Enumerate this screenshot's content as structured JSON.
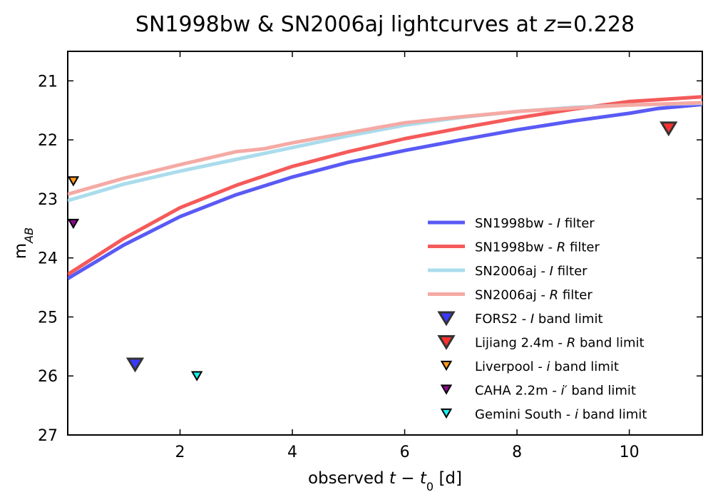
{
  "chart_data": {
    "type": "line",
    "title_parts": [
      {
        "text": "SN1998bw & SN2006aj lightcurves at ",
        "italic": false
      },
      {
        "text": "z",
        "italic": true
      },
      {
        "text": "=0.228",
        "italic": false
      }
    ],
    "xlabel_parts": [
      {
        "text": "observed ",
        "italic": false
      },
      {
        "text": "t",
        "italic": true
      },
      {
        "text": " − ",
        "italic": false
      },
      {
        "text": "t",
        "italic": true
      },
      {
        "text": "0",
        "italic": false,
        "sub": true
      },
      {
        "text": " [d]",
        "italic": false
      }
    ],
    "ylabel_parts": [
      {
        "text": "m",
        "italic": false
      },
      {
        "text": "AB",
        "italic": true,
        "sub": true
      }
    ],
    "xlim": [
      0,
      11.3
    ],
    "ylim": [
      27,
      20.5
    ],
    "y_inverted": true,
    "x_ticks": [
      2,
      4,
      6,
      8,
      10
    ],
    "y_ticks": [
      21,
      22,
      23,
      24,
      25,
      26,
      27
    ],
    "grid": false,
    "legend_position": "lower-right",
    "series": [
      {
        "name_parts": [
          {
            "text": "SN1998bw - ",
            "italic": false
          },
          {
            "text": "I",
            "italic": true
          },
          {
            "text": " filter",
            "italic": false
          }
        ],
        "color": "#5a5af5",
        "x": [
          0,
          1,
          2,
          3,
          4,
          5,
          6,
          7,
          8,
          9,
          10,
          10.5,
          11.3
        ],
        "y": [
          24.35,
          23.78,
          23.3,
          22.93,
          22.63,
          22.38,
          22.18,
          22.0,
          21.83,
          21.68,
          21.55,
          21.47,
          21.4
        ]
      },
      {
        "name_parts": [
          {
            "text": "SN1998bw - ",
            "italic": false
          },
          {
            "text": "R",
            "italic": true
          },
          {
            "text": " filter",
            "italic": false
          }
        ],
        "color": "#f55a5a",
        "x": [
          0,
          1,
          2,
          3,
          4,
          5,
          6,
          7,
          8,
          9,
          10,
          11.3
        ],
        "y": [
          24.28,
          23.67,
          23.15,
          22.77,
          22.45,
          22.2,
          21.98,
          21.8,
          21.63,
          21.48,
          21.35,
          21.27
        ]
      },
      {
        "name_parts": [
          {
            "text": "SN2006aj - ",
            "italic": false
          },
          {
            "text": "I",
            "italic": true
          },
          {
            "text": " filter",
            "italic": false
          }
        ],
        "color": "#aadcec",
        "x": [
          0,
          1,
          2,
          3,
          4,
          5,
          6,
          7,
          8,
          9,
          10,
          11.3
        ],
        "y": [
          23.03,
          22.75,
          22.53,
          22.33,
          22.13,
          21.93,
          21.75,
          21.62,
          21.52,
          21.45,
          21.41,
          21.38
        ]
      },
      {
        "name_parts": [
          {
            "text": "SN2006aj - ",
            "italic": false
          },
          {
            "text": "R",
            "italic": true
          },
          {
            "text": " filter",
            "italic": false
          }
        ],
        "color": "#f5aaa4",
        "x": [
          0,
          1,
          2,
          3,
          3.5,
          4,
          5,
          6,
          7,
          8,
          9,
          10,
          11.3
        ],
        "y": [
          22.92,
          22.65,
          22.42,
          22.2,
          22.15,
          22.05,
          21.88,
          21.71,
          21.61,
          21.52,
          21.46,
          21.41,
          21.37
        ]
      }
    ],
    "limits": [
      {
        "name_parts": [
          {
            "text": "FORS2 - ",
            "italic": false
          },
          {
            "text": "I",
            "italic": true
          },
          {
            "text": " band limit",
            "italic": false
          }
        ],
        "color": "#3a3aff",
        "edge": "#333333",
        "size": "large",
        "points": [
          {
            "x": 1.2,
            "y": 25.78
          }
        ]
      },
      {
        "name_parts": [
          {
            "text": "Lijiang 2.4m - ",
            "italic": false
          },
          {
            "text": "R",
            "italic": true
          },
          {
            "text": " band limit",
            "italic": false
          }
        ],
        "color": "#ff3030",
        "edge": "#333333",
        "size": "large",
        "points": [
          {
            "x": 10.7,
            "y": 21.78
          }
        ]
      },
      {
        "name_parts": [
          {
            "text": "Liverpool - ",
            "italic": false
          },
          {
            "text": "i",
            "italic": true
          },
          {
            "text": " band limit",
            "italic": false
          }
        ],
        "color": "#ff9a1a",
        "edge": "#000000",
        "size": "small",
        "points": [
          {
            "x": 0.1,
            "y": 22.68
          }
        ]
      },
      {
        "name_parts": [
          {
            "text": "CAHA 2.2m - ",
            "italic": false
          },
          {
            "text": "i′",
            "italic": true
          },
          {
            "text": " band limit",
            "italic": false
          }
        ],
        "color": "#8a0a8a",
        "edge": "#000000",
        "size": "small",
        "points": [
          {
            "x": 0.1,
            "y": 23.4
          }
        ]
      },
      {
        "name_parts": [
          {
            "text": "Gemini South - ",
            "italic": false
          },
          {
            "text": "i",
            "italic": true
          },
          {
            "text": " band limit",
            "italic": false
          }
        ],
        "color": "#1af0f0",
        "edge": "#000000",
        "size": "small",
        "points": [
          {
            "x": 2.3,
            "y": 25.98
          }
        ]
      }
    ]
  }
}
